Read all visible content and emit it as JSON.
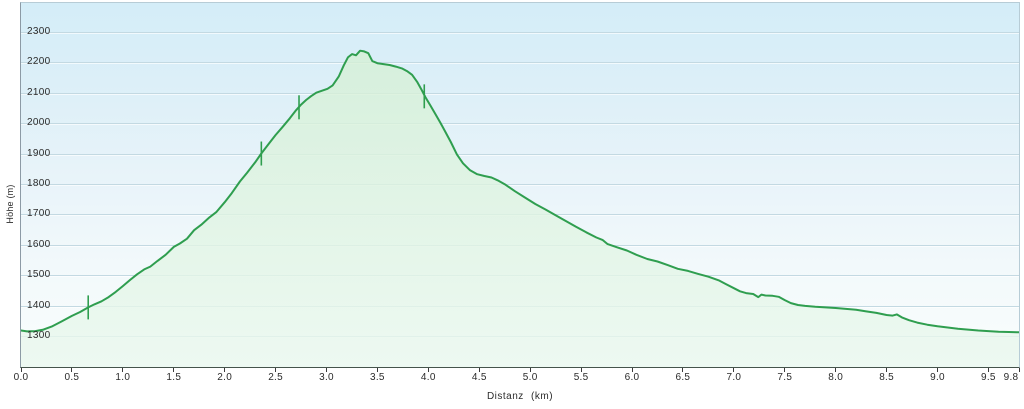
{
  "chart_data": {
    "type": "area",
    "title": "",
    "xlabel": "Distanz  (km)",
    "ylabel": "Höhe (m)",
    "x_range": [
      0,
      9.8
    ],
    "y_range": [
      1198,
      2395
    ],
    "grid": true,
    "legend": "none",
    "xtick_labels": [
      "0.0",
      "0.5",
      "1.0",
      "1.5",
      "2.0",
      "2.5",
      "3.0",
      "3.5",
      "4.0",
      "4.5",
      "5.0",
      "5.5",
      "6.0",
      "6.5",
      "7.0",
      "7.5",
      "8.0",
      "8.5",
      "9.0",
      "9.5",
      "9.8"
    ],
    "ytick_labels": [
      "2300",
      "2200",
      "2100",
      "2000",
      "1900",
      "1800",
      "1700",
      "1600",
      "1500",
      "1400",
      "1300"
    ],
    "colors": {
      "line": "#2f9e4f",
      "fill_top": "rgba(213,240,213,0.80)",
      "fill_bottom": "rgba(234,248,239,0.80)",
      "gridline": "#c3d9e2",
      "plot_bg_top": "#d4edf8",
      "plot_bg_bottom": "#fafdfc",
      "axis_line": "#45544b",
      "left_spine": "#8c9aa5",
      "tick": "#3a3a3a",
      "text": "#2b2b2b"
    },
    "points": [
      [
        0.0,
        1318
      ],
      [
        0.06,
        1315
      ],
      [
        0.14,
        1316
      ],
      [
        0.22,
        1321
      ],
      [
        0.3,
        1331
      ],
      [
        0.4,
        1348
      ],
      [
        0.5,
        1366
      ],
      [
        0.58,
        1379
      ],
      [
        0.66,
        1394
      ],
      [
        0.72,
        1404
      ],
      [
        0.79,
        1414
      ],
      [
        0.86,
        1428
      ],
      [
        0.93,
        1445
      ],
      [
        1.0,
        1464
      ],
      [
        1.07,
        1484
      ],
      [
        1.14,
        1503
      ],
      [
        1.21,
        1519
      ],
      [
        1.27,
        1528
      ],
      [
        1.34,
        1547
      ],
      [
        1.42,
        1567
      ],
      [
        1.5,
        1593
      ],
      [
        1.56,
        1604
      ],
      [
        1.63,
        1620
      ],
      [
        1.7,
        1648
      ],
      [
        1.77,
        1666
      ],
      [
        1.85,
        1690
      ],
      [
        1.92,
        1708
      ],
      [
        2.0,
        1740
      ],
      [
        2.07,
        1770
      ],
      [
        2.15,
        1808
      ],
      [
        2.22,
        1837
      ],
      [
        2.3,
        1871
      ],
      [
        2.36,
        1900
      ],
      [
        2.43,
        1931
      ],
      [
        2.5,
        1961
      ],
      [
        2.57,
        1988
      ],
      [
        2.64,
        2016
      ],
      [
        2.7,
        2042
      ],
      [
        2.75,
        2061
      ],
      [
        2.8,
        2076
      ],
      [
        2.85,
        2089
      ],
      [
        2.9,
        2100
      ],
      [
        2.96,
        2107
      ],
      [
        3.01,
        2113
      ],
      [
        3.06,
        2124
      ],
      [
        3.12,
        2153
      ],
      [
        3.17,
        2190
      ],
      [
        3.21,
        2216
      ],
      [
        3.25,
        2227
      ],
      [
        3.29,
        2223
      ],
      [
        3.33,
        2238
      ],
      [
        3.37,
        2236
      ],
      [
        3.41,
        2230
      ],
      [
        3.45,
        2204
      ],
      [
        3.5,
        2197
      ],
      [
        3.56,
        2194
      ],
      [
        3.62,
        2191
      ],
      [
        3.68,
        2186
      ],
      [
        3.74,
        2180
      ],
      [
        3.79,
        2171
      ],
      [
        3.84,
        2159
      ],
      [
        3.89,
        2136
      ],
      [
        3.93,
        2112
      ],
      [
        3.97,
        2086
      ],
      [
        4.02,
        2058
      ],
      [
        4.07,
        2029
      ],
      [
        4.12,
        2000
      ],
      [
        4.17,
        1969
      ],
      [
        4.22,
        1938
      ],
      [
        4.28,
        1897
      ],
      [
        4.34,
        1868
      ],
      [
        4.41,
        1845
      ],
      [
        4.48,
        1832
      ],
      [
        4.55,
        1826
      ],
      [
        4.62,
        1821
      ],
      [
        4.68,
        1812
      ],
      [
        4.75,
        1799
      ],
      [
        4.85,
        1776
      ],
      [
        4.95,
        1755
      ],
      [
        5.05,
        1734
      ],
      [
        5.15,
        1716
      ],
      [
        5.25,
        1697
      ],
      [
        5.35,
        1678
      ],
      [
        5.45,
        1659
      ],
      [
        5.55,
        1641
      ],
      [
        5.65,
        1624
      ],
      [
        5.71,
        1616
      ],
      [
        5.76,
        1602
      ],
      [
        5.85,
        1592
      ],
      [
        5.95,
        1581
      ],
      [
        6.05,
        1566
      ],
      [
        6.15,
        1553
      ],
      [
        6.25,
        1545
      ],
      [
        6.35,
        1533
      ],
      [
        6.45,
        1521
      ],
      [
        6.55,
        1514
      ],
      [
        6.65,
        1504
      ],
      [
        6.75,
        1495
      ],
      [
        6.85,
        1483
      ],
      [
        6.92,
        1471
      ],
      [
        7.0,
        1457
      ],
      [
        7.06,
        1447
      ],
      [
        7.12,
        1441
      ],
      [
        7.19,
        1438
      ],
      [
        7.24,
        1428
      ],
      [
        7.27,
        1436
      ],
      [
        7.31,
        1433
      ],
      [
        7.38,
        1432
      ],
      [
        7.44,
        1429
      ],
      [
        7.5,
        1418
      ],
      [
        7.56,
        1408
      ],
      [
        7.63,
        1402
      ],
      [
        7.7,
        1399
      ],
      [
        7.8,
        1396
      ],
      [
        7.9,
        1394
      ],
      [
        8.0,
        1392
      ],
      [
        8.1,
        1389
      ],
      [
        8.2,
        1386
      ],
      [
        8.3,
        1381
      ],
      [
        8.4,
        1376
      ],
      [
        8.5,
        1369
      ],
      [
        8.56,
        1367
      ],
      [
        8.6,
        1371
      ],
      [
        8.65,
        1361
      ],
      [
        8.72,
        1352
      ],
      [
        8.8,
        1344
      ],
      [
        8.9,
        1337
      ],
      [
        9.0,
        1332
      ],
      [
        9.1,
        1328
      ],
      [
        9.2,
        1324
      ],
      [
        9.3,
        1321
      ],
      [
        9.4,
        1318
      ],
      [
        9.5,
        1316
      ],
      [
        9.6,
        1314
      ],
      [
        9.7,
        1313
      ],
      [
        9.8,
        1312
      ]
    ],
    "waypoint_markers": [
      [
        0.66,
        1394
      ],
      [
        2.36,
        1900
      ],
      [
        2.73,
        2052
      ],
      [
        3.96,
        2088
      ]
    ]
  }
}
